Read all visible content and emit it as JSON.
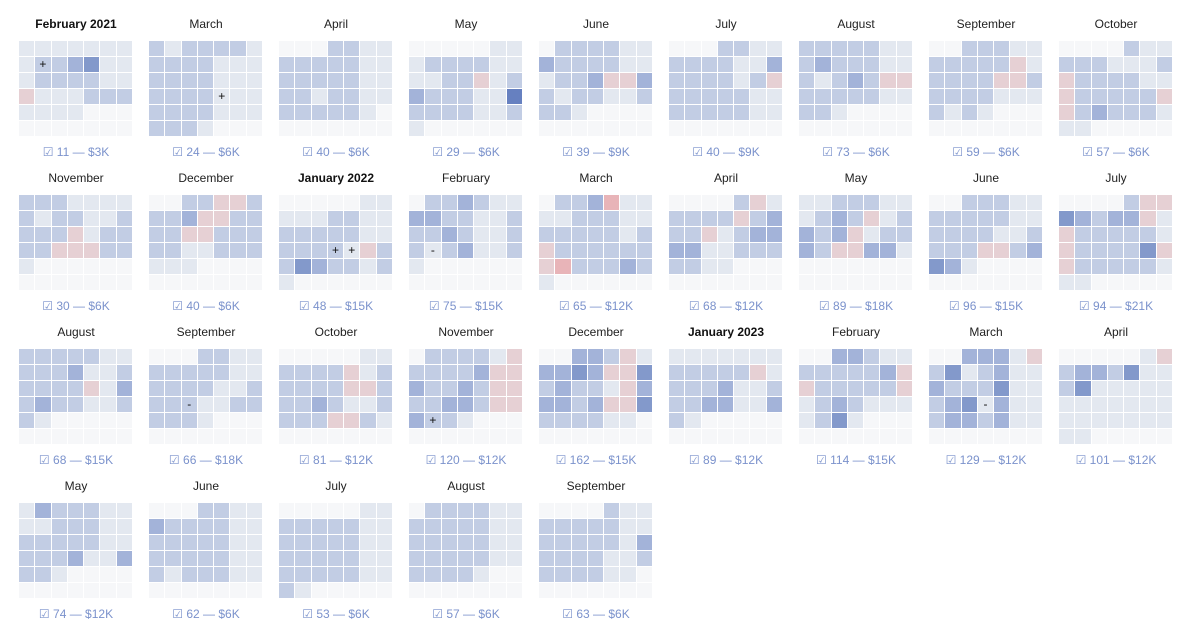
{
  "legend": {
    "0": "#f6f7f9",
    "1": "#e3e8f0",
    "2": "#c2cde4",
    "3": "#a3b3d9",
    "4": "#8399cb",
    "5": "#6680c0",
    "p": "#e6d0d4",
    "r": "#e8b4b8"
  },
  "chart_data": {
    "type": "heatmap",
    "title": "",
    "description": "Monthly calendar heatmaps, 7 columns x 6 rows per month, each with count and amount",
    "months": [
      {
        "title": "February 2021",
        "bold": true,
        "count": "11",
        "amount": "$3K",
        "cells": "111111112234111222211p111222111100000000000",
        "marks": [
          [
            1,
            1,
            "+"
          ]
        ]
      },
      {
        "title": "March",
        "bold": false,
        "count": "24",
        "amount": "$6K",
        "cells": "212222122221112222111222211122221112221000000000",
        "marks": [
          [
            3,
            4,
            "+"
          ]
        ]
      },
      {
        "title": "April",
        "bold": false,
        "count": "40",
        "amount": "$6K",
        "cells": "000221122222112222211221221122222100000000",
        "marks": []
      },
      {
        "title": "May",
        "bold": false,
        "count": "29",
        "amount": "$6K",
        "cells": "000001112222111122p1232221152222112100000",
        "marks": []
      },
      {
        "title": "June",
        "bold": false,
        "count": "39",
        "amount": "$9K",
        "cells": "022221132222111223pp3212211222100000000000",
        "marks": []
      },
      {
        "title": "July",
        "bold": false,
        "count": "40",
        "amount": "$9K",
        "cells": "00022112222113222212p2222211222221100000000",
        "marks": []
      },
      {
        "title": "August",
        "bold": false,
        "count": "73",
        "amount": "$6K",
        "cells": "2222211232221121232pp22222112210000000000",
        "marks": []
      },
      {
        "title": "September",
        "bold": false,
        "count": "59",
        "amount": "$6K",
        "cells": "002221122222p12222pp2222211121210000000000",
        "marks": []
      },
      {
        "title": "October",
        "bold": false,
        "count": "57",
        "amount": "$6K",
        "cells": "00002112221112p222211p22222pp2322211100000",
        "marks": []
      },
      {
        "title": "November",
        "bold": false,
        "count": "30",
        "amount": "$6K",
        "cells": "22211112122112222p12222ppp221000000000000",
        "marks": []
      },
      {
        "title": "December",
        "bold": false,
        "count": "40",
        "amount": "$6K",
        "cells": "0022pp2223pp2222pp222221122211100000000000",
        "marks": []
      },
      {
        "title": "January 2022",
        "bold": true,
        "count": "48",
        "amount": "$15K",
        "cells": "00000111112211222221122221p2243221210000000",
        "marks": [
          [
            3,
            3,
            "+"
          ],
          [
            3,
            4,
            "+"
          ]
        ]
      },
      {
        "title": "February",
        "bold": false,
        "count": "75",
        "amount": "$15K",
        "cells": "0223211332211222321122123112100000000000000",
        "marks": [
          [
            3,
            1,
            "-"
          ]
        ]
      },
      {
        "title": "March",
        "bold": false,
        "count": "65",
        "amount": "$12K",
        "cells": "0223r1111222112222212p222222pr22232100000000",
        "marks": []
      },
      {
        "title": "April",
        "bold": false,
        "count": "68",
        "amount": "$12K",
        "cells": "00002p12222p2322p123333112222211000000000",
        "marks": []
      },
      {
        "title": "May",
        "bold": false,
        "count": "89",
        "amount": "$18K",
        "cells": "11222111232p12323p12232pp331000000000000000",
        "marks": []
      },
      {
        "title": "June",
        "bold": false,
        "count": "96",
        "amount": "$15K",
        "cells": "002221122222112222112222pp2343100000000000",
        "marks": []
      },
      {
        "title": "July",
        "bold": false,
        "count": "94",
        "amount": "$21K",
        "cells": "00002pp43233p1p222221p22224pp222221110000000",
        "marks": []
      },
      {
        "title": "August",
        "bold": false,
        "count": "68",
        "amount": "$15K",
        "cells": "222221122231122222p132322112210000000000",
        "marks": []
      },
      {
        "title": "September",
        "bold": false,
        "count": "66",
        "amount": "$18K",
        "cells": "000221122222112222112222112222210000000000",
        "marks": [
          [
            3,
            2,
            "-"
          ]
        ]
      },
      {
        "title": "October",
        "bold": false,
        "count": "81",
        "amount": "$12K",
        "cells": "00000112222p122222pp22232112222pp21000000",
        "marks": []
      },
      {
        "title": "November",
        "bold": false,
        "count": "120",
        "amount": "$12K",
        "cells": "022221p22223pp32232pp22332pp32210000000000",
        "marks": [
          [
            4,
            1,
            "+"
          ]
        ]
      },
      {
        "title": "December",
        "bold": false,
        "count": "162",
        "amount": "$15K",
        "cells": "00332p1334 3pp4232 21p33323pp42222110000000",
        "marks": []
      },
      {
        "title": "January 2023",
        "bold": true,
        "count": "89",
        "amount": "$12K",
        "cells": "111111122222p12223112223311321000000000000",
        "marks": []
      },
      {
        "title": "February",
        "bold": false,
        "count": "114",
        "amount": "$15K",
        "cells": "0033211222223pp22222p1232111124100000000000",
        "marks": []
      },
      {
        "title": "March",
        "bold": false,
        "count": "129",
        "amount": "$12K",
        "cells": "0033 31p2412311322 24112341311233231 10000000",
        "marks": [
          [
            3,
            3,
            "-"
          ]
        ]
      },
      {
        "title": "April",
        "bold": false,
        "count": "101",
        "amount": "$12K",
        "cells": "000001p23324112411111111111111111111100000",
        "marks": []
      },
      {
        "title": "May",
        "bold": false,
        "count": "74",
        "amount": "$12K",
        "cells": "13222111122211222221122231132210000000000",
        "marks": []
      },
      {
        "title": "June",
        "bold": false,
        "count": "62",
        "amount": "$6K",
        "cells": "00022113222211222221122222112122211000000000",
        "marks": []
      },
      {
        "title": "July",
        "bold": false,
        "count": "53",
        "amount": "$6K",
        "cells": "000001122222112222211222221122222112100000",
        "marks": []
      },
      {
        "title": "August",
        "bold": false,
        "count": "57",
        "amount": "$6K",
        "cells": "022221122222112222211222221122221000000000",
        "marks": []
      },
      {
        "title": "September",
        "bold": false,
        "count": "63",
        "amount": "$6K",
        "cells": "000021122222112222213222211222221100000000",
        "marks": []
      }
    ]
  },
  "footer_icon": "checkbox-icon",
  "footer_glyph": "☑",
  "footer_sep": "—"
}
